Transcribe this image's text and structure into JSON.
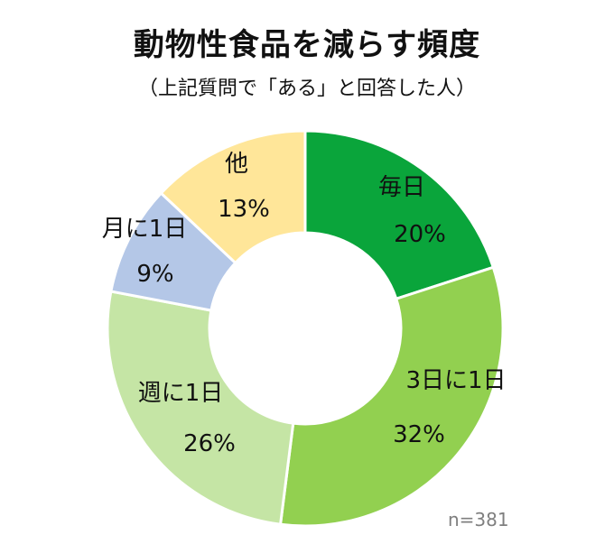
{
  "chart_data": {
    "type": "pie",
    "variant": "donut",
    "title": "動物性食品を減らす頻度",
    "subtitle": "（上記質問で「ある」と回答した人）",
    "slices": [
      {
        "label": "毎日",
        "value": 20,
        "value_label": "20%",
        "color": "#0aa53b"
      },
      {
        "label": "3日に1日",
        "value": 32,
        "value_label": "32%",
        "color": "#92d050"
      },
      {
        "label": "週に1日",
        "value": 26,
        "value_label": "26%",
        "color": "#c5e5a5"
      },
      {
        "label": "月に1日",
        "value": 9,
        "value_label": "9%",
        "color": "#b4c7e7"
      },
      {
        "label": "他",
        "value": 13,
        "value_label": "13%",
        "color": "#ffe699"
      }
    ],
    "start_angle": "12 o'clock",
    "direction": "clockwise",
    "annotation": "n=381"
  }
}
